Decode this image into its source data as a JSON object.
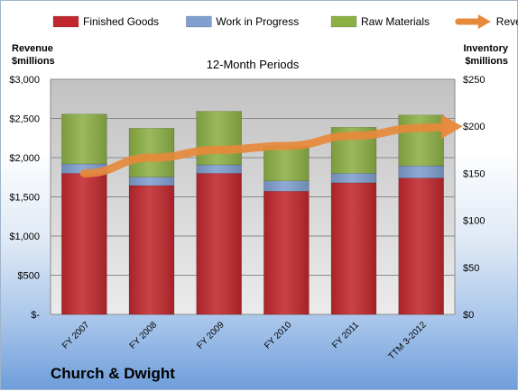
{
  "chart_data": {
    "type": "bar",
    "stacked": true,
    "title": "12-Month Periods",
    "company": "Church & Dwight",
    "left_axis_label": [
      "Revenue",
      "$millions"
    ],
    "right_axis_label": [
      "Inventory",
      "$millions"
    ],
    "categories": [
      "FY 2007",
      "FY 2008",
      "FY 2009",
      "FY 2010",
      "FY 2011",
      "TTM 3-2012"
    ],
    "left_ticks": [
      "$-",
      "$500",
      "$1,000",
      "$1,500",
      "$2,000",
      "$2,500",
      "$3,000"
    ],
    "right_ticks": [
      "$0",
      "$50",
      "$100",
      "$150",
      "$200",
      "$250"
    ],
    "ylim_left": [
      0,
      3000
    ],
    "ylim_right": [
      0,
      250
    ],
    "series": [
      {
        "name": "Finished Goods",
        "axis": "right",
        "color": "#c0282d",
        "values": [
          150,
          137,
          150,
          131,
          140,
          145
        ]
      },
      {
        "name": "Work in Progress",
        "axis": "right",
        "color": "#7f9fcf",
        "values": [
          10,
          9,
          9,
          11,
          10,
          13
        ]
      },
      {
        "name": "Raw Materials",
        "axis": "right",
        "color": "#8db045",
        "values": [
          53,
          52,
          57,
          37,
          49,
          54
        ]
      }
    ],
    "line": {
      "name": "Revenue",
      "axis": "left",
      "color": "#e7893a",
      "values": [
        1800,
        2000,
        2100,
        2150,
        2280,
        2380
      ]
    },
    "legend_position": "top",
    "grid": true
  }
}
